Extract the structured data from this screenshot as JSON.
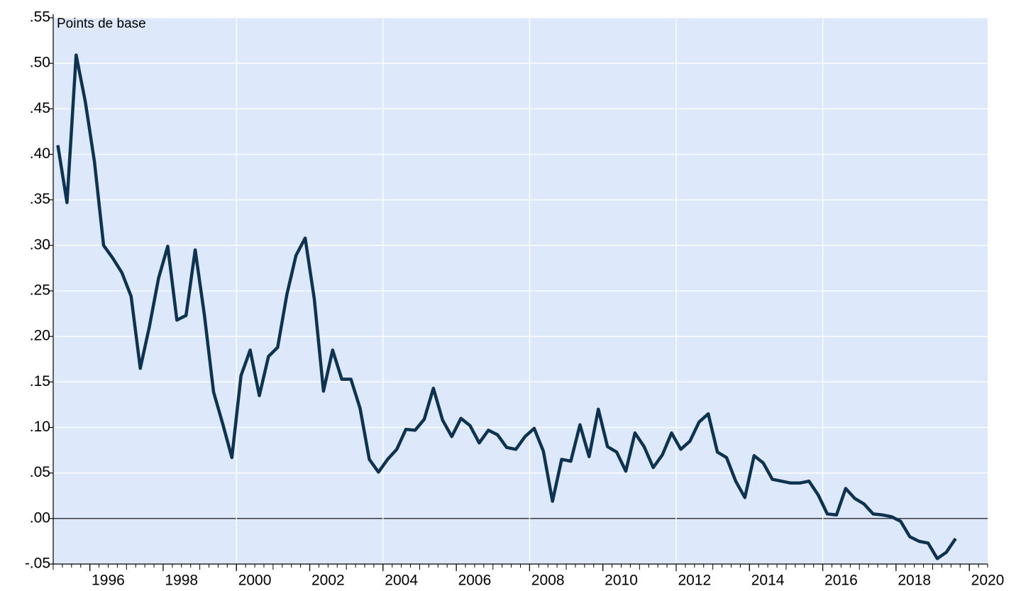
{
  "chart_data": {
    "type": "line",
    "annotation": "Points de base",
    "x": [
      1995.125,
      1995.375,
      1995.625,
      1995.875,
      1996.125,
      1996.375,
      1996.625,
      1996.875,
      1997.125,
      1997.375,
      1997.625,
      1997.875,
      1998.125,
      1998.375,
      1998.625,
      1998.875,
      1999.125,
      1999.375,
      1999.625,
      1999.875,
      2000.125,
      2000.375,
      2000.625,
      2000.875,
      2001.125,
      2001.375,
      2001.625,
      2001.875,
      2002.125,
      2002.375,
      2002.625,
      2002.875,
      2003.125,
      2003.375,
      2003.625,
      2003.875,
      2004.125,
      2004.375,
      2004.625,
      2004.875,
      2005.125,
      2005.375,
      2005.625,
      2005.875,
      2006.125,
      2006.375,
      2006.625,
      2006.875,
      2007.125,
      2007.375,
      2007.625,
      2007.875,
      2008.125,
      2008.375,
      2008.625,
      2008.875,
      2009.125,
      2009.375,
      2009.625,
      2009.875,
      2010.125,
      2010.375,
      2010.625,
      2010.875,
      2011.125,
      2011.375,
      2011.625,
      2011.875,
      2012.125,
      2012.375,
      2012.625,
      2012.875,
      2013.125,
      2013.375,
      2013.625,
      2013.875,
      2014.125,
      2014.375,
      2014.625,
      2014.875,
      2015.125,
      2015.375,
      2015.625,
      2015.875,
      2016.125,
      2016.375,
      2016.625,
      2016.875,
      2017.125,
      2017.375,
      2017.625,
      2017.875,
      2018.125,
      2018.375,
      2018.625,
      2018.875,
      2019.125,
      2019.375,
      2019.625
    ],
    "series": [
      {
        "color": "#0d3350",
        "values": [
          0.41,
          0.347,
          0.509,
          0.458,
          0.392,
          0.3,
          0.286,
          0.27,
          0.244,
          0.165,
          0.211,
          0.264,
          0.299,
          0.218,
          0.223,
          0.295,
          0.224,
          0.139,
          0.104,
          0.067,
          0.157,
          0.185,
          0.135,
          0.178,
          0.188,
          0.246,
          0.289,
          0.308,
          0.241,
          0.14,
          0.185,
          0.153,
          0.153,
          0.121,
          0.065,
          0.051,
          0.065,
          0.076,
          0.098,
          0.097,
          0.109,
          0.143,
          0.108,
          0.09,
          0.11,
          0.102,
          0.083,
          0.097,
          0.092,
          0.078,
          0.076,
          0.09,
          0.099,
          0.074,
          0.019,
          0.065,
          0.063,
          0.103,
          0.068,
          0.12,
          0.079,
          0.073,
          0.052,
          0.094,
          0.079,
          0.056,
          0.07,
          0.094,
          0.076,
          0.085,
          0.106,
          0.115,
          0.073,
          0.067,
          0.041,
          0.023,
          0.069,
          0.061,
          0.043,
          0.041,
          0.039,
          0.039,
          0.041,
          0.026,
          0.005,
          0.004,
          0.033,
          0.022,
          0.016,
          0.005,
          0.004,
          0.002,
          -0.003,
          -0.02,
          -0.025,
          -0.027,
          -0.044,
          -0.037,
          -0.022
        ]
      }
    ],
    "xlim": [
      1995,
      2020.5
    ],
    "xticks": [
      1996,
      1998,
      2000,
      2002,
      2004,
      2006,
      2008,
      2010,
      2012,
      2014,
      2016,
      2018,
      2020
    ],
    "xgrid": [
      2000,
      2004,
      2008,
      2012,
      2016
    ],
    "ylim": [
      -0.05,
      0.55
    ],
    "yticks": [
      {
        "value": -0.05,
        "label": "-.05"
      },
      {
        "value": 0,
        "label": ".00"
      },
      {
        "value": 0.05,
        "label": ".05"
      },
      {
        "value": 0.1,
        "label": ".10"
      },
      {
        "value": 0.15,
        "label": ".15"
      },
      {
        "value": 0.2,
        "label": ".20"
      },
      {
        "value": 0.25,
        "label": ".25"
      },
      {
        "value": 0.3,
        "label": ".30"
      },
      {
        "value": 0.35,
        "label": ".35"
      },
      {
        "value": 0.4,
        "label": ".40"
      },
      {
        "value": 0.45,
        "label": ".45"
      },
      {
        "value": 0.5,
        "label": ".50"
      },
      {
        "value": 0.55,
        "label": ".55"
      }
    ],
    "grid": true,
    "background": "#dde9fb"
  }
}
